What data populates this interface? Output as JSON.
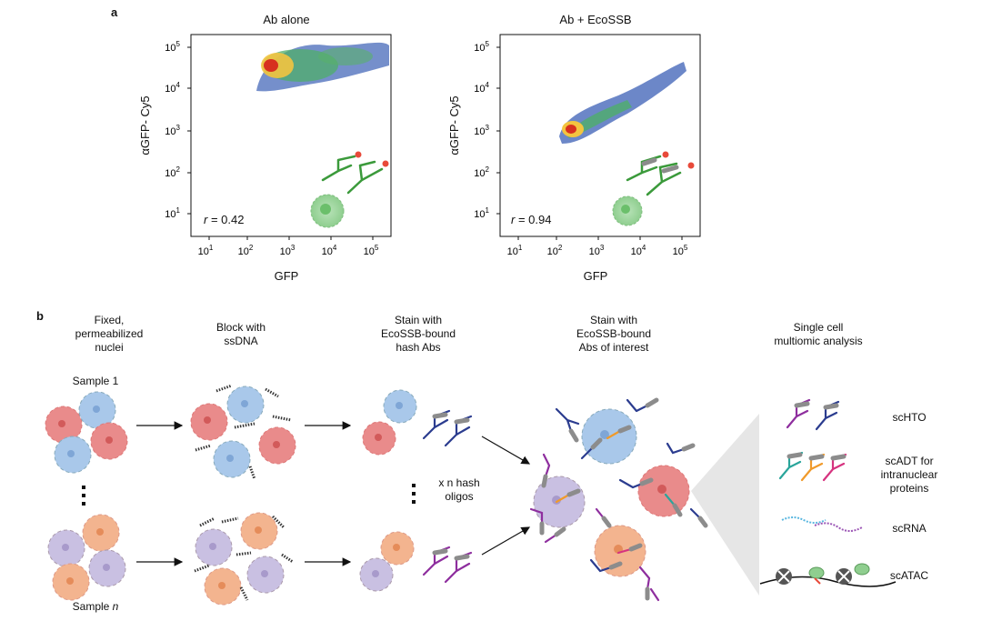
{
  "panel_a": {
    "letter": "a",
    "plots": [
      {
        "title": "Ab alone",
        "ylabel": "αGFP- Cy5",
        "xlabel": "GFP",
        "r_prefix": "r",
        "r_value": "= 0.42"
      },
      {
        "title": "Ab + EcoSSB",
        "ylabel": "αGFP- Cy5",
        "xlabel": "GFP",
        "r_prefix": "r",
        "r_value": "= 0.94"
      }
    ],
    "x_ticks": [
      {
        "b": "10",
        "e": "1"
      },
      {
        "b": "10",
        "e": "2"
      },
      {
        "b": "10",
        "e": "3"
      },
      {
        "b": "10",
        "e": "4"
      },
      {
        "b": "10",
        "e": "5"
      }
    ],
    "y_ticks": [
      {
        "b": "10",
        "e": "1"
      },
      {
        "b": "10",
        "e": "2"
      },
      {
        "b": "10",
        "e": "3"
      },
      {
        "b": "10",
        "e": "4"
      },
      {
        "b": "10",
        "e": "5"
      }
    ]
  },
  "panel_b": {
    "letter": "b",
    "step1": [
      "Fixed,",
      "permeabilized",
      "nuclei"
    ],
    "step2": [
      "Block with",
      "ssDNA"
    ],
    "step3": [
      "Stain with",
      "EcoSSB-bound",
      "hash Abs"
    ],
    "step4": [
      "Stain with",
      "EcoSSB-bound",
      "Abs of interest"
    ],
    "step5": [
      "Single cell",
      "multiomic analysis"
    ],
    "sample1": "Sample 1",
    "sample_n_prefix": "Sample ",
    "sample_n_italic": "n",
    "hash_note": [
      "x n hash",
      "oligos"
    ],
    "outputs": {
      "scHTO": "scHTO",
      "scADT": [
        "scADT for",
        "intranuclear",
        "proteins"
      ],
      "scRNA": "scRNA",
      "scATAC": "scATAC"
    }
  },
  "colors": {
    "red_cell": "#e98b8b",
    "blue_cell": "#a9c8ea",
    "orange_cell": "#f3b48f",
    "purple_cell": "#c9c0e2",
    "green_cell": "#8fce8f",
    "ab_gray": "#8c8c8c",
    "ab_navy": "#2b3c8f",
    "ab_purple": "#8e2e9e",
    "ab_teal": "#2aa59b",
    "ab_orange": "#f09a2a",
    "ab_magenta": "#d6337f",
    "ab_green": "#3b9a3b",
    "dye_red": "#e84a3a",
    "shade": "#e6e6e6"
  }
}
